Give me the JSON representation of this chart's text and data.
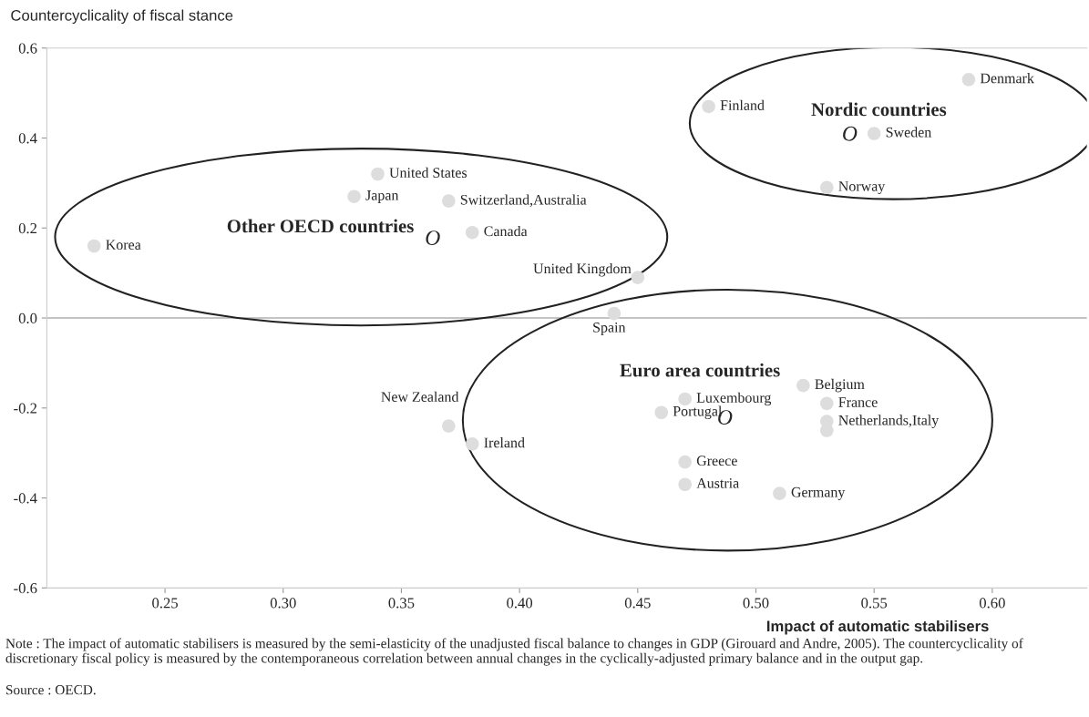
{
  "chart_data": {
    "type": "scatter",
    "xlabel": "Impact of automatic stabilisers",
    "ylabel": "Countercyclicality of fiscal stance",
    "x": [
      0.22,
      0.33,
      0.34,
      0.37,
      0.38,
      0.45,
      0.44,
      0.48,
      0.55,
      0.53,
      0.59,
      0.37,
      0.38,
      0.47,
      0.46,
      0.52,
      0.53,
      0.53,
      0.53,
      0.47,
      0.47,
      0.51
    ],
    "series": [
      {
        "color": "#dddddd",
        "values": [
          0.16,
          0.27,
          0.32,
          0.26,
          0.19,
          0.09,
          0.01,
          0.47,
          0.41,
          0.29,
          0.53,
          -0.24,
          -0.28,
          -0.18,
          -0.21,
          -0.15,
          -0.19,
          -0.23,
          -0.25,
          -0.32,
          -0.37,
          -0.39
        ]
      }
    ],
    "marker": "circle",
    "xlim": [
      0.2,
      0.64
    ],
    "xticks": [
      {
        "value": 0.25,
        "label": "0.25"
      },
      {
        "value": 0.3,
        "label": "0.30"
      },
      {
        "value": 0.35,
        "label": "0.35"
      },
      {
        "value": 0.4,
        "label": "0.40"
      },
      {
        "value": 0.45,
        "label": "0.45"
      },
      {
        "value": 0.5,
        "label": "0.50"
      },
      {
        "value": 0.55,
        "label": "0.55"
      },
      {
        "value": 0.6,
        "label": "0.60"
      }
    ],
    "ylim": [
      -0.6,
      0.6
    ],
    "yticks": [
      {
        "value": -0.6,
        "label": "-0.6"
      },
      {
        "value": -0.4,
        "label": "-0.4"
      },
      {
        "value": -0.2,
        "label": "-0.2"
      },
      {
        "value": 0,
        "label": "0.0"
      },
      {
        "value": 0.2,
        "label": "0.2"
      },
      {
        "value": 0.4,
        "label": "0.4"
      },
      {
        "value": 0.6,
        "label": "0.6"
      }
    ],
    "ref_lines": [
      {
        "axis": "y",
        "value": 0,
        "color": "#b0b0b0"
      }
    ],
    "grid": false,
    "annotations": [
      {
        "text": "Korea",
        "x": 0.22,
        "y": 0.16
      },
      {
        "text": "Japan",
        "x": 0.33,
        "y": 0.27
      },
      {
        "text": "United States",
        "x": 0.34,
        "y": 0.32
      },
      {
        "text": "Switzerland,Australia",
        "x": 0.37,
        "y": 0.26
      },
      {
        "text": "Canada",
        "x": 0.38,
        "y": 0.19
      },
      {
        "text": "United Kingdom",
        "x": 0.45,
        "y": 0.09
      },
      {
        "text": "Spain",
        "x": 0.44,
        "y": 0.01
      },
      {
        "text": "Finland",
        "x": 0.48,
        "y": 0.47
      },
      {
        "text": "Sweden",
        "x": 0.55,
        "y": 0.41
      },
      {
        "text": "Norway",
        "x": 0.53,
        "y": 0.29
      },
      {
        "text": "Denmark",
        "x": 0.59,
        "y": 0.53
      },
      {
        "text": "New Zealand",
        "x": 0.37,
        "y": -0.24
      },
      {
        "text": "Ireland",
        "x": 0.38,
        "y": -0.28
      },
      {
        "text": "Luxembourg",
        "x": 0.47,
        "y": -0.18
      },
      {
        "text": "Portugal",
        "x": 0.46,
        "y": -0.21
      },
      {
        "text": "Belgium",
        "x": 0.52,
        "y": -0.15
      },
      {
        "text": "France",
        "x": 0.53,
        "y": -0.19
      },
      {
        "text": "Netherlands,Italy",
        "x": 0.53,
        "y": -0.23
      },
      {
        "text": "Greece",
        "x": 0.47,
        "y": -0.32
      },
      {
        "text": "Austria",
        "x": 0.47,
        "y": -0.37
      },
      {
        "text": "Germany",
        "x": 0.51,
        "y": -0.39
      },
      "Other OECD countries",
      "Nordic countries",
      "Euro area countries",
      "O",
      "O",
      "O",
      "Note : The impact of automatic stabilisers is measured by the semi-elasticity of the unadjusted fiscal balance to changes in GDP (Girouard and Andre, 2005). The countercyclicality of discretionary fiscal policy is measured by the contemporaneous correlation between annual changes in the cyclically-adjusted primary balance and in the output gap.",
      "Source : OECD."
    ]
  }
}
